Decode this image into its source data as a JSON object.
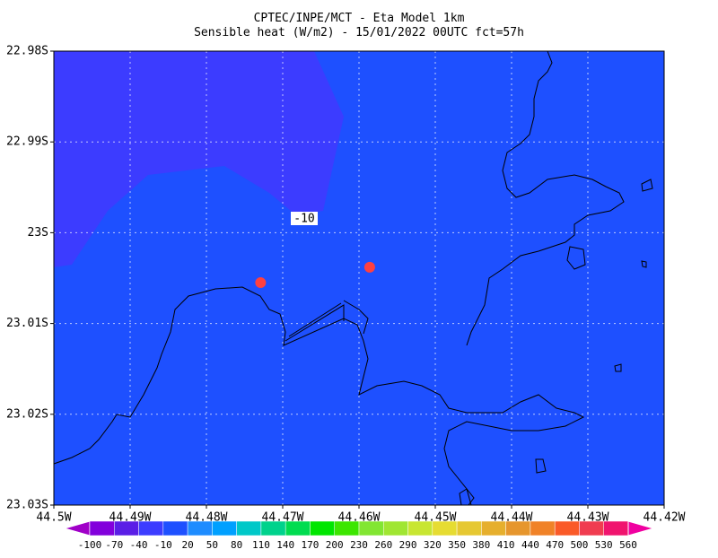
{
  "title": [
    "CPTEC/INPE/MCT -  Eta Model 1km",
    "Sensible heat (W/m2) - 15/01/2022 00UTC fct=57h"
  ],
  "xaxis": {
    "lim": [
      -44.5,
      -44.42
    ],
    "ticks": [
      {
        "value": -44.5,
        "label": "44.5W"
      },
      {
        "value": -44.49,
        "label": "44.49W"
      },
      {
        "value": -44.48,
        "label": "44.48W"
      },
      {
        "value": -44.47,
        "label": "44.47W"
      },
      {
        "value": -44.46,
        "label": "44.46W"
      },
      {
        "value": -44.45,
        "label": "44.45W"
      },
      {
        "value": -44.44,
        "label": "44.44W"
      },
      {
        "value": -44.43,
        "label": "44.43W"
      },
      {
        "value": -44.42,
        "label": "44.42W"
      }
    ]
  },
  "yaxis": {
    "lim": [
      -23.03,
      -22.98
    ],
    "ticks": [
      {
        "value": -22.98,
        "label": "22.98S"
      },
      {
        "value": -22.99,
        "label": "22.99S"
      },
      {
        "value": -23.0,
        "label": "23S"
      },
      {
        "value": -23.01,
        "label": "23.01S"
      },
      {
        "value": -23.02,
        "label": "23.02S"
      },
      {
        "value": -23.03,
        "label": "23.03S"
      }
    ]
  },
  "colorbar": {
    "levels": [
      -100,
      -70,
      -40,
      -10,
      20,
      50,
      80,
      110,
      140,
      170,
      200,
      230,
      260,
      290,
      320,
      350,
      380,
      410,
      440,
      470,
      500,
      530,
      560
    ],
    "colors": [
      "#a000c8",
      "#8200dc",
      "#5a1ee6",
      "#3c3cff",
      "#1e50ff",
      "#1e8cff",
      "#00a0ff",
      "#00c8c8",
      "#00d28c",
      "#00dc50",
      "#00e600",
      "#3ce600",
      "#82e632",
      "#a0e632",
      "#c8e632",
      "#e6dc32",
      "#e6c832",
      "#e6af2d",
      "#e6962d",
      "#f08228",
      "#fa5a28",
      "#f03c50",
      "#f0146e",
      "#f000a0"
    ]
  },
  "contour_label": -10,
  "markers": [
    {
      "lon": -44.4729,
      "lat": -23.0055,
      "color": "#ff4040"
    },
    {
      "lon": -44.4586,
      "lat": -23.0038,
      "color": "#ff4040"
    }
  ]
}
